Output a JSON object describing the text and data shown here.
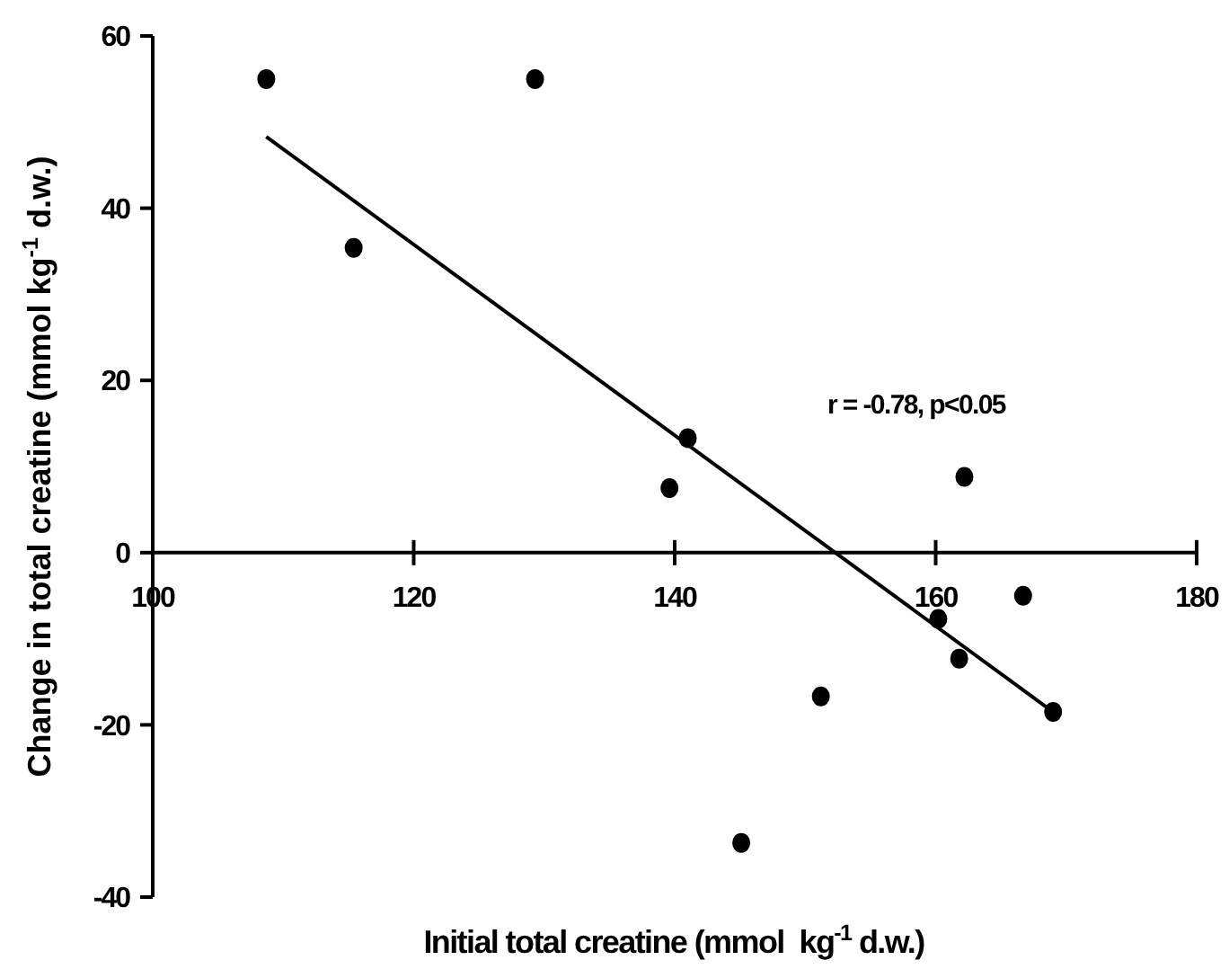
{
  "chart_data": {
    "type": "scatter",
    "xlabel": "Initial total creatine (mmol  kg$^{-1}$ d.w.)",
    "ylabel": "Change in total creatine (mmol kg$^{-1}$ d.w.)",
    "xlim": [
      100,
      180
    ],
    "ylim": [
      -40,
      60
    ],
    "xticks": [
      100,
      120,
      140,
      160,
      180
    ],
    "yticks": [
      -40,
      -20,
      0,
      20,
      40,
      60
    ],
    "grid": false,
    "marker": "circle",
    "annotations": [
      "r = -0.78, p<0.05"
    ],
    "series": [
      {
        "color": "#000000",
        "x": [
          108.7,
          115.4,
          129.3,
          139.6,
          141,
          145.1,
          151.2,
          160.2,
          161.8,
          162.2,
          166.7,
          169
        ],
        "values": [
          55,
          35.4,
          55,
          7.5,
          13.3,
          -33.7,
          -16.7,
          -7.7,
          -12.3,
          8.8,
          -5,
          -18.5
        ]
      },
      {
        "type": "line",
        "color": "#000000",
        "line_style": "solid",
        "marker": "none",
        "x": [
          108.7,
          169
        ],
        "values": [
          48.3,
          -18.5
        ]
      }
    ]
  }
}
